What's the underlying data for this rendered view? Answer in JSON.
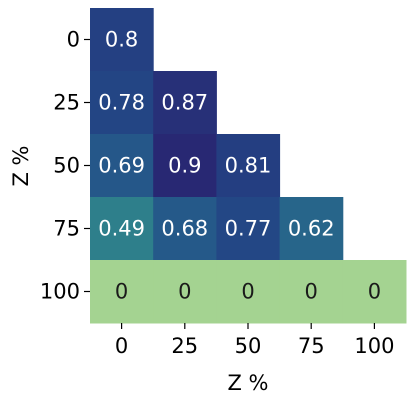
{
  "chart_data": {
    "type": "heatmap",
    "title": "",
    "xlabel": "Z %",
    "ylabel": "Z %",
    "x_categories": [
      "0",
      "25",
      "50",
      "75",
      "100"
    ],
    "y_categories": [
      "0",
      "25",
      "50",
      "75",
      "100"
    ],
    "grid": false,
    "colorbar": false,
    "mask": "upper-triangle-excluding-diagonal",
    "colormap": "crest",
    "values": [
      [
        0.8,
        null,
        null,
        null,
        null
      ],
      [
        0.78,
        0.87,
        null,
        null,
        null
      ],
      [
        0.69,
        0.9,
        0.81,
        null,
        null
      ],
      [
        0.49,
        0.68,
        0.77,
        0.62,
        null
      ],
      [
        0,
        0,
        0,
        0,
        0
      ]
    ],
    "value_labels": [
      [
        "0.8",
        "",
        "",
        "",
        ""
      ],
      [
        "0.78",
        "0.87",
        "",
        "",
        ""
      ],
      [
        "0.69",
        "0.9",
        "0.81",
        "",
        ""
      ],
      [
        "0.49",
        "0.68",
        "0.77",
        "0.62",
        ""
      ],
      [
        "0",
        "0",
        "0",
        "0",
        "0"
      ]
    ]
  }
}
